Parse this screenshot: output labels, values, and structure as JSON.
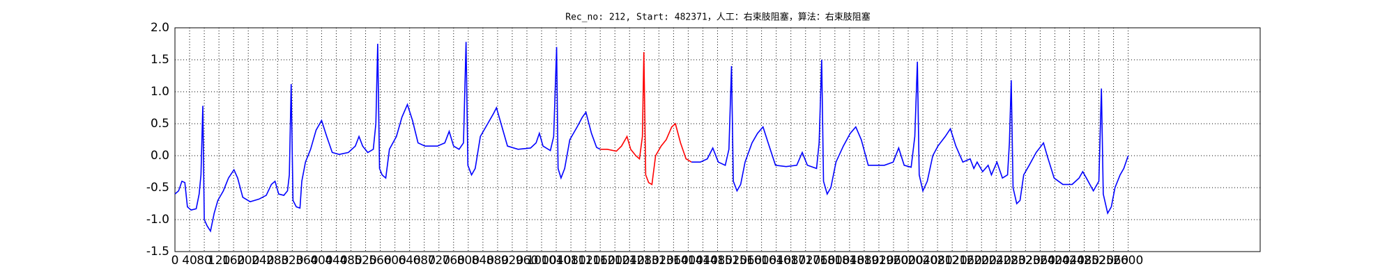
{
  "chart_data": {
    "type": "line",
    "title": "Rec_no: 212, Start: 482371，人工：右束肢阻塞，算法：右束肢阻塞",
    "xlim": [
      0,
      2960
    ],
    "ylim": [
      -1.5,
      2.0
    ],
    "xticks": [
      0,
      40,
      80,
      120,
      160,
      200,
      240,
      280,
      320,
      360,
      400,
      440,
      480,
      520,
      560,
      600,
      640,
      680,
      720,
      760,
      800,
      840,
      880,
      920,
      960,
      1000,
      1040,
      1080,
      1120,
      1160,
      1200,
      1240,
      1280,
      1320,
      1360,
      1400,
      1440,
      1480,
      1520,
      1560,
      1600,
      1640,
      1680,
      1720,
      1760,
      1800,
      1840,
      1880,
      1920,
      1960,
      2000,
      2040,
      2080,
      2120,
      2160,
      2200,
      2240,
      2280,
      2320,
      2360,
      2400,
      2440,
      2480,
      2520,
      2560,
      2600
    ],
    "yticks": [
      -1.5,
      {
        "value": -1.0,
        "label": "-1.0"
      },
      -0.5,
      {
        "value": 0.0,
        "label": "0.0"
      },
      0.5,
      {
        "value": 1.0,
        "label": "1.0"
      },
      1.5,
      {
        "value": 2.0,
        "label": "2.0"
      }
    ],
    "grid": true,
    "series": [
      {
        "color": "#0000ff",
        "x": [
          0,
          10,
          19,
          27,
          34,
          44,
          58,
          66,
          71,
          76,
          80,
          88,
          97,
          107,
          117,
          132,
          146,
          161,
          171,
          185,
          205,
          229,
          249,
          263,
          273,
          283,
          297,
          307,
          312,
          317,
          322,
          331,
          341,
          346,
          356,
          370,
          385,
          400,
          414,
          429,
          448,
          473,
          492,
          502,
          512,
          526,
          541,
          548,
          553,
          558,
          565,
          575,
          585,
          604,
          619,
          634,
          648,
          663,
          682,
          716,
          736,
          748,
          760,
          775,
          787,
          794,
          799,
          809,
          819,
          833,
          853,
          868,
          877,
          892,
          907,
          936,
          970,
          985,
          994,
          1004,
          1024,
          1033,
          1041,
          1045,
          1053,
          1063,
          1077,
          1097,
          1111,
          1121,
          1136,
          1150,
          1160
        ],
        "values": [
          -0.6,
          -0.55,
          -0.4,
          -0.42,
          -0.8,
          -0.85,
          -0.83,
          -0.6,
          -0.3,
          0.78,
          -1.0,
          -1.1,
          -1.18,
          -0.9,
          -0.7,
          -0.55,
          -0.35,
          -0.22,
          -0.35,
          -0.65,
          -0.72,
          -0.68,
          -0.62,
          -0.45,
          -0.4,
          -0.6,
          -0.62,
          -0.55,
          -0.3,
          1.12,
          -0.7,
          -0.8,
          -0.82,
          -0.4,
          -0.1,
          0.1,
          0.4,
          0.55,
          0.3,
          0.05,
          0.02,
          0.05,
          0.15,
          0.3,
          0.15,
          0.05,
          0.1,
          0.5,
          1.75,
          -0.2,
          -0.3,
          -0.35,
          0.1,
          0.3,
          0.6,
          0.8,
          0.55,
          0.2,
          0.15,
          0.15,
          0.2,
          0.38,
          0.15,
          0.1,
          0.2,
          1.78,
          -0.15,
          -0.3,
          -0.2,
          0.3,
          0.5,
          0.65,
          0.75,
          0.45,
          0.15,
          0.1,
          0.12,
          0.2,
          0.35,
          0.15,
          0.08,
          0.3,
          1.7,
          -0.2,
          -0.35,
          -0.2,
          0.25,
          0.45,
          0.6,
          0.68,
          0.35,
          0.13,
          0.1
        ]
      },
      {
        "color": "#ff0000",
        "x": [
          1160,
          1179,
          1204,
          1218,
          1233,
          1243,
          1257,
          1267,
          1275,
          1279,
          1284,
          1292,
          1301,
          1311,
          1326,
          1340,
          1355,
          1365,
          1379,
          1394,
          1409
        ],
        "values": [
          0.1,
          0.1,
          0.07,
          0.15,
          0.3,
          0.1,
          0.0,
          -0.05,
          0.3,
          1.62,
          -0.3,
          -0.42,
          -0.45,
          0.0,
          0.15,
          0.25,
          0.45,
          0.5,
          0.2,
          -0.05,
          -0.1
        ]
      },
      {
        "color": "#0000ff",
        "x": [
          1409,
          1433,
          1452,
          1467,
          1482,
          1501,
          1511,
          1518,
          1523,
          1533,
          1543,
          1555,
          1574,
          1589,
          1604,
          1618,
          1638,
          1667,
          1696,
          1711,
          1725,
          1750,
          1757,
          1764,
          1769,
          1779,
          1789,
          1803,
          1823,
          1842,
          1857,
          1872,
          1891,
          1935,
          1959,
          1974,
          1989,
          2008,
          2018,
          2025,
          2030,
          2040,
          2052,
          2067,
          2081,
          2101,
          2115,
          2130,
          2149,
          2169,
          2179,
          2188,
          2203,
          2218,
          2227,
          2242,
          2257,
          2271,
          2276,
          2281,
          2286,
          2296,
          2305,
          2315,
          2330,
          2349,
          2369,
          2379,
          2398,
          2422,
          2447,
          2466,
          2476,
          2486,
          2505,
          2520,
          2527,
          2532,
          2544,
          2554,
          2564,
          2578,
          2588,
          2600
        ],
        "values": [
          -0.1,
          -0.1,
          -0.05,
          0.12,
          -0.1,
          -0.15,
          0.1,
          1.4,
          -0.4,
          -0.55,
          -0.45,
          -0.1,
          0.2,
          0.35,
          0.45,
          0.2,
          -0.15,
          -0.17,
          -0.15,
          0.05,
          -0.15,
          -0.2,
          0.2,
          1.5,
          -0.4,
          -0.6,
          -0.5,
          -0.1,
          0.15,
          0.35,
          0.45,
          0.25,
          -0.15,
          -0.15,
          -0.1,
          0.12,
          -0.15,
          -0.18,
          0.3,
          1.47,
          -0.3,
          -0.55,
          -0.4,
          0.0,
          0.15,
          0.3,
          0.42,
          0.15,
          -0.1,
          -0.05,
          -0.2,
          -0.1,
          -0.25,
          -0.15,
          -0.3,
          -0.1,
          -0.35,
          -0.3,
          0.2,
          1.18,
          -0.5,
          -0.75,
          -0.7,
          -0.3,
          -0.15,
          0.05,
          0.2,
          0.0,
          -0.35,
          -0.45,
          -0.45,
          -0.35,
          -0.25,
          -0.35,
          -0.55,
          -0.4,
          1.05,
          -0.6,
          -0.9,
          -0.8,
          -0.5,
          -0.3,
          -0.2,
          0.0
        ]
      }
    ]
  }
}
